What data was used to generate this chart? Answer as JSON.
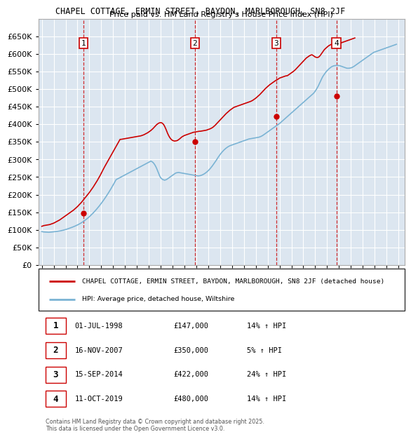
{
  "title": "CHAPEL COTTAGE, ERMIN STREET, BAYDON, MARLBOROUGH, SN8 2JF",
  "subtitle": "Price paid vs. HM Land Registry's House Price Index (HPI)",
  "background_color": "#dce9f5",
  "plot_bg_color": "#dce6f0",
  "legend_line1": "CHAPEL COTTAGE, ERMIN STREET, BAYDON, MARLBOROUGH, SN8 2JF (detached house)",
  "legend_line2": "HPI: Average price, detached house, Wiltshire",
  "red_color": "#cc0000",
  "blue_color": "#7ab3d4",
  "footer": "Contains HM Land Registry data © Crown copyright and database right 2025.\nThis data is licensed under the Open Government Licence v3.0.",
  "purchases": [
    {
      "num": 1,
      "date": "01-JUL-1998",
      "price": 147000,
      "hpi": "14% ↑ HPI",
      "year": 1998.5
    },
    {
      "num": 2,
      "date": "16-NOV-2007",
      "price": 350000,
      "hpi": "5% ↑ HPI",
      "year": 2007.88
    },
    {
      "num": 3,
      "date": "15-SEP-2014",
      "price": 422000,
      "hpi": "24% ↑ HPI",
      "year": 2014.71
    },
    {
      "num": 4,
      "date": "11-OCT-2019",
      "price": 480000,
      "hpi": "14% ↑ HPI",
      "year": 2019.78
    }
  ],
  "ylim": [
    0,
    700000
  ],
  "yticks": [
    0,
    50000,
    100000,
    150000,
    200000,
    250000,
    300000,
    350000,
    400000,
    450000,
    500000,
    550000,
    600000,
    650000
  ],
  "xlim_start": 1994.7,
  "xlim_end": 2025.5,
  "xticks": [
    1995,
    1996,
    1997,
    1998,
    1999,
    2000,
    2001,
    2002,
    2003,
    2004,
    2005,
    2006,
    2007,
    2008,
    2009,
    2010,
    2011,
    2012,
    2013,
    2014,
    2015,
    2016,
    2017,
    2018,
    2019,
    2020,
    2021,
    2022,
    2023,
    2024,
    2025
  ],
  "hpi_monthly": [
    95000,
    94500,
    94000,
    93800,
    93500,
    93200,
    93000,
    93000,
    93200,
    93500,
    93800,
    94200,
    94500,
    94800,
    95000,
    95400,
    95800,
    96200,
    96700,
    97200,
    97800,
    98500,
    99200,
    100000,
    100800,
    101600,
    102500,
    103500,
    104500,
    105500,
    106600,
    107700,
    108800,
    110000,
    111200,
    112500,
    113900,
    115300,
    116800,
    118400,
    120100,
    121900,
    123800,
    125800,
    127900,
    130100,
    132400,
    134800,
    137300,
    139900,
    142600,
    145400,
    148300,
    151300,
    154400,
    157600,
    160900,
    164300,
    167800,
    171400,
    175100,
    178900,
    182800,
    186800,
    190900,
    195100,
    199400,
    203800,
    208300,
    212900,
    217600,
    222400,
    227300,
    232300,
    237400,
    242600,
    244000,
    245500,
    247000,
    248500,
    250000,
    251500,
    253000,
    254500,
    256000,
    257500,
    259000,
    260500,
    262000,
    263500,
    265000,
    266500,
    268000,
    269500,
    271000,
    272500,
    274000,
    275500,
    277000,
    278500,
    280000,
    281500,
    283000,
    284500,
    286000,
    287500,
    289000,
    290500,
    292000,
    293500,
    295000,
    294000,
    292000,
    289000,
    285000,
    280000,
    274000,
    267000,
    260000,
    253000,
    248000,
    245000,
    243000,
    242000,
    241000,
    242000,
    243000,
    245000,
    247000,
    249000,
    251000,
    253000,
    255000,
    257000,
    259000,
    261000,
    262000,
    262500,
    263000,
    262500,
    262000,
    261500,
    261000,
    260500,
    260000,
    259500,
    259000,
    258500,
    258000,
    257500,
    257000,
    256500,
    256000,
    255500,
    255000,
    254500,
    254000,
    253500,
    253000,
    253500,
    254000,
    255000,
    256000,
    257500,
    259000,
    261000,
    263000,
    265500,
    268000,
    271000,
    274000,
    277500,
    281000,
    285000,
    289000,
    293000,
    297000,
    301500,
    306000,
    310000,
    314000,
    317500,
    321000,
    324000,
    327000,
    329500,
    332000,
    334000,
    336000,
    337500,
    339000,
    340000,
    341000,
    342000,
    343000,
    344000,
    345000,
    346000,
    347000,
    348000,
    349000,
    350000,
    351000,
    352000,
    353000,
    354000,
    355000,
    356000,
    357000,
    358000,
    358500,
    359000,
    359500,
    360000,
    360500,
    361000,
    361500,
    362000,
    362500,
    363000,
    364000,
    365000,
    366500,
    368000,
    370000,
    372000,
    374000,
    376000,
    378000,
    380000,
    382000,
    384000,
    386000,
    388000,
    390000,
    392000,
    394000,
    396000,
    398000,
    400000,
    402000,
    404500,
    407000,
    409500,
    412000,
    414500,
    417000,
    419500,
    422000,
    424500,
    427000,
    429500,
    432000,
    434500,
    437000,
    439500,
    442000,
    444500,
    447000,
    449500,
    452000,
    454500,
    457000,
    459500,
    462000,
    464500,
    467000,
    469500,
    472000,
    474500,
    477000,
    479500,
    482000,
    484500,
    487000,
    490000,
    494000,
    498000,
    503000,
    508000,
    514000,
    520000,
    526000,
    532000,
    537000,
    541000,
    545000,
    549000,
    552000,
    555000,
    557500,
    560000,
    562000,
    564000,
    565000,
    566000,
    566500,
    567000,
    567000,
    567000,
    566500,
    566000,
    565000,
    564000,
    563000,
    562000,
    561000,
    560000,
    559000,
    559000,
    559000,
    559500,
    560000,
    561000,
    562500,
    564000,
    566000,
    568000,
    570000,
    572000,
    574000,
    576000,
    578000,
    580000,
    582000,
    584000,
    586000,
    588000,
    590000,
    592000,
    594000,
    596000,
    598000,
    600000,
    602000,
    604000,
    605000,
    606000,
    607000,
    608000,
    609000,
    610000,
    611000,
    612000,
    613000,
    614000,
    615000,
    616000,
    617000,
    618000,
    619000,
    620000,
    621000,
    622000,
    623000,
    624000,
    625000,
    626000,
    627000
  ],
  "red_monthly": [
    110000,
    111000,
    112000,
    112500,
    113000,
    113500,
    114000,
    114500,
    115000,
    116000,
    117000,
    118000,
    119000,
    120500,
    122000,
    123500,
    125000,
    126500,
    128000,
    130000,
    132000,
    134000,
    136000,
    138000,
    140000,
    142000,
    144000,
    146000,
    148000,
    150000,
    152000,
    154000,
    156000,
    158500,
    161000,
    163500,
    166000,
    169000,
    172000,
    175000,
    178000,
    181500,
    185000,
    188500,
    192000,
    195500,
    199000,
    202500,
    206000,
    210000,
    214000,
    218000,
    222000,
    226500,
    231000,
    235500,
    240000,
    245000,
    250000,
    255000,
    260500,
    266000,
    271500,
    277000,
    282000,
    287000,
    292000,
    297000,
    302000,
    307000,
    312000,
    317000,
    322000,
    327000,
    332000,
    337000,
    342000,
    347000,
    352000,
    357000,
    357000,
    357500,
    358000,
    358500,
    359000,
    359500,
    360000,
    360500,
    361000,
    361500,
    362000,
    362500,
    363000,
    363500,
    364000,
    364500,
    365000,
    365500,
    366000,
    366500,
    367000,
    368000,
    369000,
    370000,
    371500,
    373000,
    374500,
    376000,
    378000,
    380000,
    382000,
    384500,
    387000,
    390000,
    393000,
    396000,
    399000,
    401000,
    403000,
    404000,
    404500,
    404000,
    402000,
    399000,
    394000,
    388000,
    381000,
    374000,
    368000,
    363000,
    359000,
    356000,
    354000,
    353000,
    352000,
    352500,
    353000,
    354000,
    356000,
    358000,
    360500,
    363000,
    365000,
    366500,
    368000,
    369000,
    370000,
    371000,
    372000,
    373000,
    374000,
    375000,
    376000,
    377000,
    377500,
    378000,
    378500,
    379000,
    379500,
    380000,
    380000,
    380500,
    381000,
    381500,
    382000,
    382500,
    383000,
    384000,
    385000,
    386000,
    387000,
    388500,
    390000,
    392000,
    394500,
    397000,
    400000,
    403000,
    406000,
    409000,
    412000,
    415000,
    418000,
    421000,
    424000,
    427000,
    430000,
    432500,
    435000,
    437500,
    440000,
    442000,
    444000,
    446000,
    448000,
    449000,
    450000,
    451000,
    452000,
    453000,
    454000,
    455000,
    456000,
    457000,
    458000,
    459000,
    460000,
    461000,
    462000,
    463000,
    464000,
    465000,
    466500,
    468000,
    470000,
    472000,
    474000,
    476500,
    479000,
    481500,
    484000,
    487000,
    490000,
    493000,
    496000,
    499000,
    502000,
    504500,
    507000,
    509500,
    512000,
    514000,
    516000,
    518000,
    520000,
    522000,
    524000,
    525500,
    527000,
    529000,
    531000,
    532000,
    533000,
    534000,
    535000,
    536000,
    537000,
    537500,
    538000,
    540000,
    542000,
    544000,
    546000,
    548000,
    550000,
    552500,
    555000,
    558000,
    561000,
    564000,
    567000,
    570000,
    573000,
    576000,
    579000,
    582000,
    585000,
    588000,
    590000,
    592000,
    594000,
    595500,
    597000,
    597000,
    595000,
    593000,
    591000,
    590000,
    589500,
    590000,
    592000,
    595000,
    599000,
    603000,
    607000,
    611000,
    614000,
    616500,
    619000,
    621500,
    623500,
    625000,
    626500,
    627000,
    628000,
    629000,
    630000,
    630500,
    631000,
    631000,
    631000,
    631000,
    631000,
    632000,
    633000,
    634000,
    635000,
    636000,
    637000,
    638000,
    639000,
    640000,
    641000,
    642000,
    643000,
    644000,
    645000
  ]
}
